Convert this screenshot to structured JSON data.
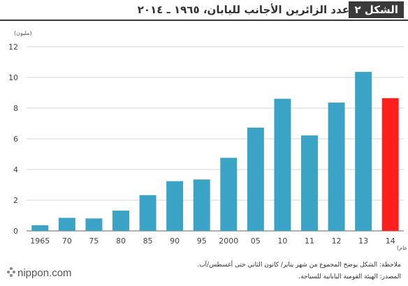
{
  "header": {
    "badge": "الشكل ٢",
    "title": "عدد الزائرين الأجانب لليابان، ١٩٦٥ ـ ٢٠١٤"
  },
  "chart_data": {
    "type": "bar",
    "y_unit_label": "(مليون)",
    "x_unit_label": "(عام)",
    "categories": [
      "1965",
      "70",
      "75",
      "80",
      "85",
      "90",
      "95",
      "2000",
      "05",
      "10",
      "11",
      "12",
      "13",
      "14"
    ],
    "values": [
      0.37,
      0.85,
      0.81,
      1.32,
      2.33,
      3.24,
      3.35,
      4.76,
      6.73,
      8.61,
      6.22,
      8.36,
      10.36,
      8.65
    ],
    "ylim": [
      0,
      12
    ],
    "yticks": [
      0,
      2,
      4,
      6,
      8,
      10,
      12
    ],
    "grid": true,
    "colors": {
      "bar": "#3aa3c6",
      "highlight": "#ff1f1f",
      "grid": "#d5d5d5",
      "axis": "#666666"
    },
    "highlight_index": 13
  },
  "notes": {
    "note": "ملاحظة: الشكل يوضح المجموع من شهر يناير/ كانون الثاني حتى أغسطس/آب.",
    "source": "المصدر: الهيئة القومية اليابانية للسياحة."
  },
  "logo": {
    "text": "nippon.com",
    "icon": "nippon-dots-icon"
  }
}
